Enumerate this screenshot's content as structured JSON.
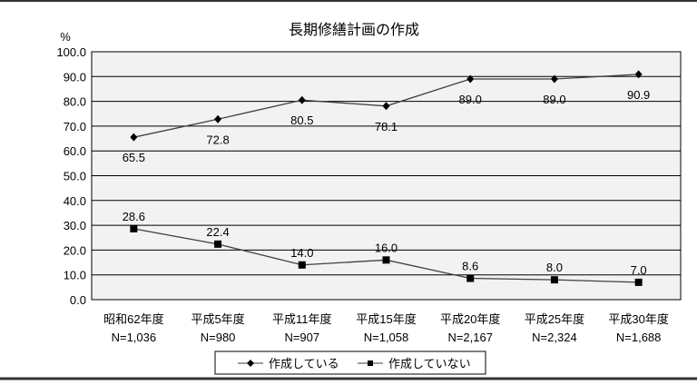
{
  "chart_data": {
    "type": "line",
    "title": "長期修繕計画の作成",
    "ylabel": "%",
    "ylim": [
      0,
      100
    ],
    "yticks": [
      "0.0",
      "10.0",
      "20.0",
      "30.0",
      "40.0",
      "50.0",
      "60.0",
      "70.0",
      "80.0",
      "90.0",
      "100.0"
    ],
    "grid": true,
    "legend": "bottom",
    "categories": [
      "昭和62年度",
      "平成5年度",
      "平成11年度",
      "平成15年度",
      "平成20年度",
      "平成25年度",
      "平成30年度"
    ],
    "sample_sizes": [
      "N=1,036",
      "N=980",
      "N=907",
      "N=1,058",
      "N=2,167",
      "N=2,324",
      "N=1,688"
    ],
    "series": [
      {
        "name": "作成している",
        "marker": "diamond",
        "values": [
          65.5,
          72.8,
          80.5,
          78.1,
          89.0,
          89.0,
          90.9
        ],
        "labels": [
          "65.5",
          "72.8",
          "80.5",
          "78.1",
          "89.0",
          "89.0",
          "90.9"
        ],
        "color": "#000000"
      },
      {
        "name": "作成していない",
        "marker": "square",
        "values": [
          28.6,
          22.4,
          14.0,
          16.0,
          8.6,
          8.0,
          7.0
        ],
        "labels": [
          "28.6",
          "22.4",
          "14.0",
          "16.0",
          "8.6",
          "8.0",
          "7.0"
        ],
        "color": "#000000"
      }
    ],
    "colors": {
      "plot_bg": "#f2f2f2",
      "line": "#404040"
    }
  }
}
